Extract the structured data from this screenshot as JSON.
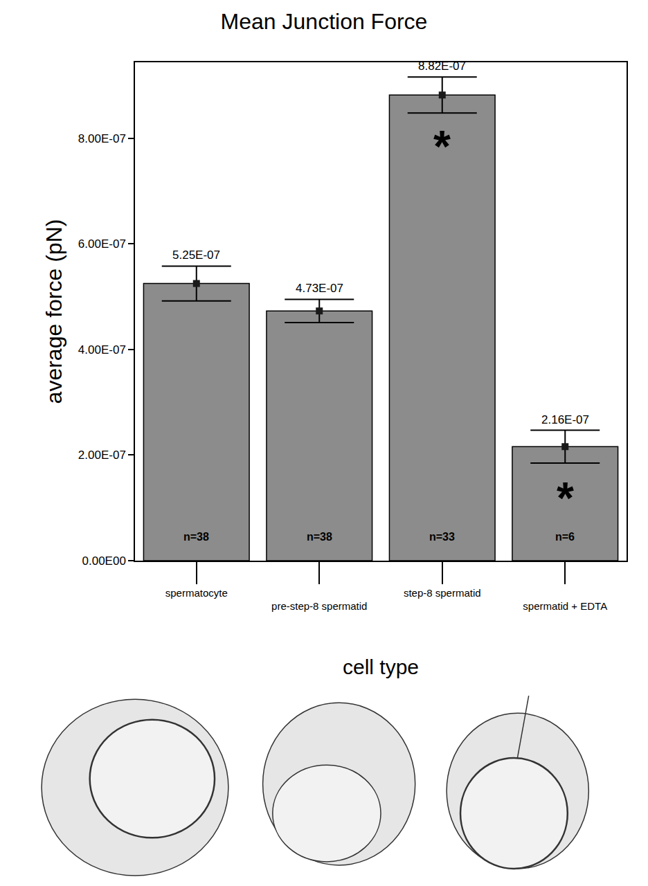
{
  "chart_data": {
    "type": "bar",
    "title": "Mean Junction Force",
    "x_label": "cell type",
    "y_label": "average force (pN)",
    "categories": [
      "spermatocyte",
      "pre-step-8 spermatid",
      "step-8 spermatid",
      "spermatid + EDTA"
    ],
    "values": [
      5.25e-07,
      4.73e-07,
      8.82e-07,
      2.16e-07
    ],
    "value_labels": [
      "5.25E-07",
      "4.73E-07",
      "8.82E-07",
      "2.16E-07"
    ],
    "errors": [
      3.3e-08,
      2.2e-08,
      3.4e-08,
      3.1e-08
    ],
    "n_labels": [
      "n=38",
      "n=38",
      "n=33",
      "n=6"
    ],
    "annotations": [
      {
        "category": "step-8 spermatid",
        "text": "*"
      },
      {
        "category": "spermatid + EDTA",
        "text": "*"
      }
    ],
    "color": "#8c8c8c",
    "marker": "square",
    "data_labels": true,
    "grid": false,
    "ylim": [
      0,
      9.44e-07
    ],
    "yticks": [
      {
        "value": 0,
        "label": "0.00E00"
      },
      {
        "value": 2e-07,
        "label": "2.00E-07"
      },
      {
        "value": 4e-07,
        "label": "4.00E-07"
      },
      {
        "value": 6e-07,
        "label": "6.00E-07"
      },
      {
        "value": 8e-07,
        "label": "8.00E-07"
      }
    ]
  }
}
